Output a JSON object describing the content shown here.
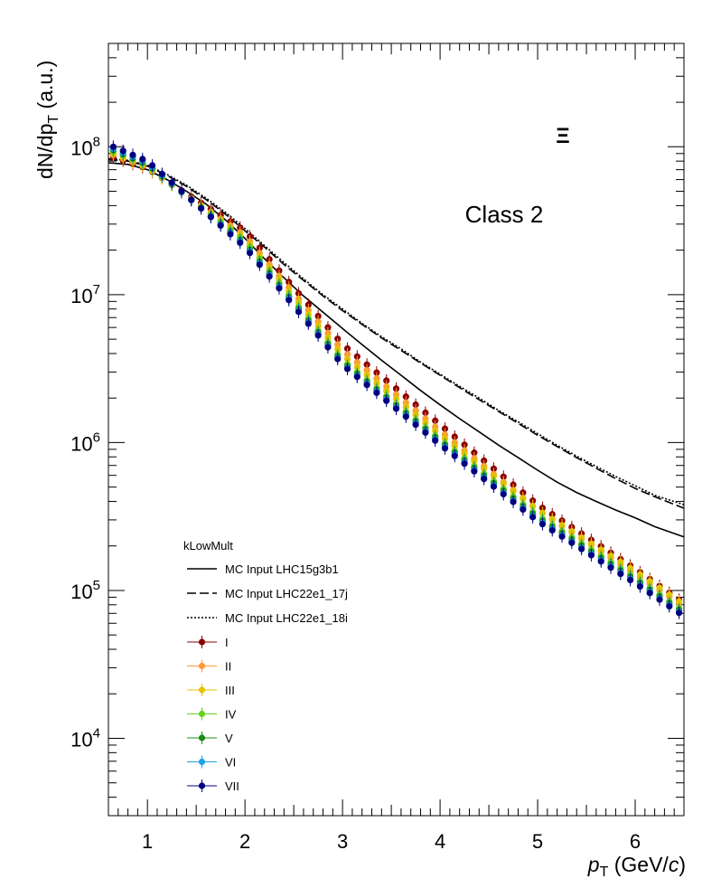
{
  "chart_data": {
    "type": "scatter",
    "title": "",
    "xlabel": {
      "var": "p",
      "sub": "T",
      "unit_pre": " (GeV/",
      "unit_var": "c",
      "unit_post": ")"
    },
    "ylabel": {
      "pre": "dN/dp",
      "sub": "T",
      "post": " (a.u.)"
    },
    "xlim": [
      0.6,
      6.5
    ],
    "ylim": [
      3000,
      500000000
    ],
    "ylog": true,
    "xticks": [
      1,
      2,
      3,
      4,
      5,
      6
    ],
    "yticks": [
      {
        "value": 10000,
        "base": "10",
        "exp": "4"
      },
      {
        "value": 100000,
        "base": "10",
        "exp": "5"
      },
      {
        "value": 1000000,
        "base": "10",
        "exp": "6"
      },
      {
        "value": 10000000,
        "base": "10",
        "exp": "7"
      },
      {
        "value": 100000000,
        "base": "10",
        "exp": "8"
      }
    ],
    "annotations": {
      "particle": "Ξ",
      "class_label": "Class 2"
    },
    "legend": {
      "title": "kLowMult",
      "placement": "bottom-left"
    },
    "mc_curves": [
      {
        "name": "MC Input LHC15g3b1",
        "style": "solid",
        "x": [
          0.6,
          0.8,
          1.0,
          1.2,
          1.4,
          1.6,
          1.8,
          2.0,
          2.2,
          2.4,
          2.6,
          2.8,
          3.0,
          3.2,
          3.4,
          3.6,
          3.8,
          4.0,
          4.2,
          4.4,
          4.6,
          4.8,
          5.0,
          5.2,
          5.4,
          5.6,
          5.8,
          6.0,
          6.2,
          6.5
        ],
        "y": [
          78000000,
          76000000,
          70000000,
          60000000,
          50000000,
          41000000,
          32000000,
          24000000,
          17500000,
          13000000,
          9800000,
          7600000,
          5900000,
          4600000,
          3600000,
          2850000,
          2250000,
          1800000,
          1450000,
          1180000,
          960000,
          790000,
          650000,
          540000,
          460000,
          400000,
          350000,
          310000,
          270000,
          230000
        ]
      },
      {
        "name": "MC Input LHC22e1_17j",
        "style": "dashed",
        "x": [
          0.6,
          0.8,
          1.0,
          1.2,
          1.4,
          1.6,
          1.8,
          2.0,
          2.2,
          2.4,
          2.6,
          2.8,
          3.0,
          3.2,
          3.4,
          3.6,
          3.8,
          4.0,
          4.2,
          4.4,
          4.6,
          4.8,
          5.0,
          5.2,
          5.4,
          5.6,
          5.8,
          6.0,
          6.2,
          6.5
        ],
        "y": [
          82000000,
          80000000,
          74000000,
          64000000,
          54000000,
          44000000,
          35000000,
          27000000,
          21000000,
          16000000,
          12500000,
          9800000,
          7800000,
          6300000,
          5100000,
          4200000,
          3450000,
          2850000,
          2350000,
          1950000,
          1620000,
          1350000,
          1120000,
          940000,
          790000,
          670000,
          570000,
          490000,
          430000,
          360000
        ]
      },
      {
        "name": "MC Input LHC22e1_18i",
        "style": "dotted",
        "x": [
          0.6,
          0.8,
          1.0,
          1.2,
          1.4,
          1.6,
          1.8,
          2.0,
          2.2,
          2.4,
          2.6,
          2.8,
          3.0,
          3.2,
          3.4,
          3.6,
          3.8,
          4.0,
          4.2,
          4.4,
          4.6,
          4.8,
          5.0,
          5.2,
          5.4,
          5.6,
          5.8,
          6.0,
          6.2,
          6.5
        ],
        "y": [
          83000000,
          81000000,
          75000000,
          65000000,
          55000000,
          45000000,
          36000000,
          28000000,
          21500000,
          16500000,
          12800000,
          10000000,
          8000000,
          6400000,
          5200000,
          4300000,
          3500000,
          2900000,
          2400000,
          2000000,
          1650000,
          1380000,
          1150000,
          960000,
          810000,
          690000,
          590000,
          510000,
          440000,
          380000
        ]
      }
    ],
    "series": [
      {
        "name": "I",
        "color": "#8b0000",
        "y_at_1": 71000000,
        "y_at_2": 27000000,
        "y_at_3": 4600000,
        "y_at_4": 1320000,
        "y_at_5": 380000,
        "y_at_6": 140000,
        "y_at_6_5": 82000
      },
      {
        "name": "II",
        "color": "#ff9933",
        "y_at_1": 72000000,
        "y_at_2": 25000000,
        "y_at_3": 4200000,
        "y_at_4": 1200000,
        "y_at_5": 350000,
        "y_at_6": 130000,
        "y_at_6_5": 78000
      },
      {
        "name": "III",
        "color": "#e6c300",
        "y_at_1": 73000000,
        "y_at_2": 24000000,
        "y_at_3": 3900000,
        "y_at_4": 1130000,
        "y_at_5": 350000,
        "y_at_6": 135000,
        "y_at_6_5": 80000
      },
      {
        "name": "IV",
        "color": "#66d11a",
        "y_at_1": 75000000,
        "y_at_2": 23000000,
        "y_at_3": 3600000,
        "y_at_4": 1050000,
        "y_at_5": 320000,
        "y_at_6": 122000,
        "y_at_6_5": 72000
      },
      {
        "name": "V",
        "color": "#1a8c1a",
        "y_at_1": 76000000,
        "y_at_2": 22000000,
        "y_at_3": 3500000,
        "y_at_4": 1020000,
        "y_at_5": 310000,
        "y_at_6": 118000,
        "y_at_6_5": 70000
      },
      {
        "name": "VI",
        "color": "#1aa3e6",
        "y_at_1": 78000000,
        "y_at_2": 21500000,
        "y_at_3": 3400000,
        "y_at_4": 990000,
        "y_at_5": 300000,
        "y_at_6": 114000,
        "y_at_6_5": 68000
      },
      {
        "name": "VII",
        "color": "#000080",
        "y_at_1": 80000000,
        "y_at_2": 21000000,
        "y_at_3": 3350000,
        "y_at_4": 970000,
        "y_at_5": 295000,
        "y_at_6": 112000,
        "y_at_6_5": 67000
      }
    ],
    "points_x": [
      0.65,
      0.75,
      0.85,
      0.95,
      1.05,
      1.15,
      1.25,
      1.35,
      1.45,
      1.55,
      1.65,
      1.75,
      1.85,
      1.95,
      2.05,
      2.15,
      2.25,
      2.35,
      2.45,
      2.55,
      2.65,
      2.75,
      2.85,
      2.95,
      3.05,
      3.15,
      3.25,
      3.35,
      3.45,
      3.55,
      3.65,
      3.75,
      3.85,
      3.95,
      4.05,
      4.15,
      4.25,
      4.35,
      4.45,
      4.55,
      4.65,
      4.75,
      4.85,
      4.95,
      5.05,
      5.15,
      5.25,
      5.35,
      5.45,
      5.55,
      5.65,
      5.75,
      5.85,
      5.95,
      6.05,
      6.15,
      6.25,
      6.35,
      6.45
    ],
    "points_y_at_0_65": [
      85000000,
      88000000,
      90000000,
      93000000,
      95000000,
      97000000,
      100000000
    ]
  }
}
